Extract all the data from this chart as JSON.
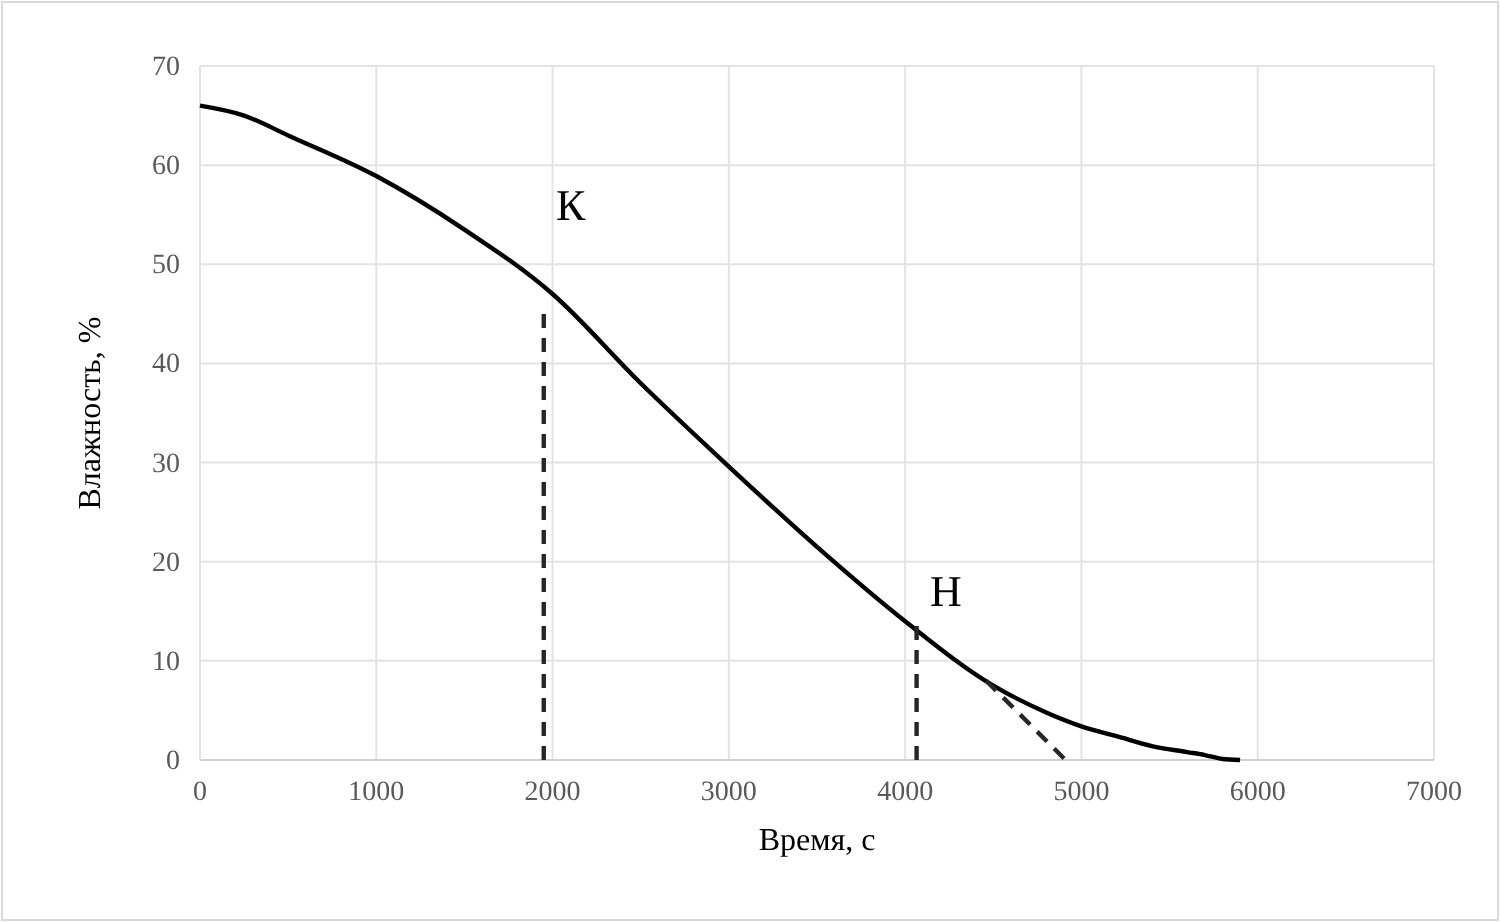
{
  "chart_data": {
    "type": "line",
    "xlabel": "Время, с",
    "ylabel": "Влажность, %",
    "xlim": [
      0,
      7000
    ],
    "xticks": [
      0,
      1000,
      2000,
      3000,
      4000,
      5000,
      6000,
      7000
    ],
    "ylim": [
      0,
      70
    ],
    "yticks": [
      0,
      10,
      20,
      30,
      40,
      50,
      60,
      70
    ],
    "grid": true,
    "marker": "none",
    "series": [
      {
        "color": "#000000",
        "line_style": "solid",
        "x": [
          0,
          250,
          500,
          1000,
          1500,
          2000,
          2500,
          3000,
          3500,
          4000,
          4500,
          4800,
          5000,
          5200,
          5400,
          5600,
          5700,
          5800,
          5900
        ],
        "values": [
          66,
          65,
          63,
          58.9,
          53.5,
          47,
          38,
          29.6,
          21.5,
          14,
          7.5,
          4.8,
          3.4,
          2.4,
          1.4,
          0.8,
          0.5,
          0.1,
          0
        ]
      },
      {
        "color": "#262626",
        "line_style": "dashed",
        "x": [
          1950,
          1950
        ],
        "values": [
          0,
          45.4
        ]
      },
      {
        "color": "#262626",
        "line_style": "dashed",
        "x": [
          4065,
          4065
        ],
        "values": [
          0,
          13.7
        ]
      },
      {
        "color": "#262626",
        "line_style": "dashed",
        "x": [
          4460,
          4910
        ],
        "values": [
          8,
          0
        ]
      }
    ],
    "annotations": [
      "К",
      "Н"
    ]
  }
}
